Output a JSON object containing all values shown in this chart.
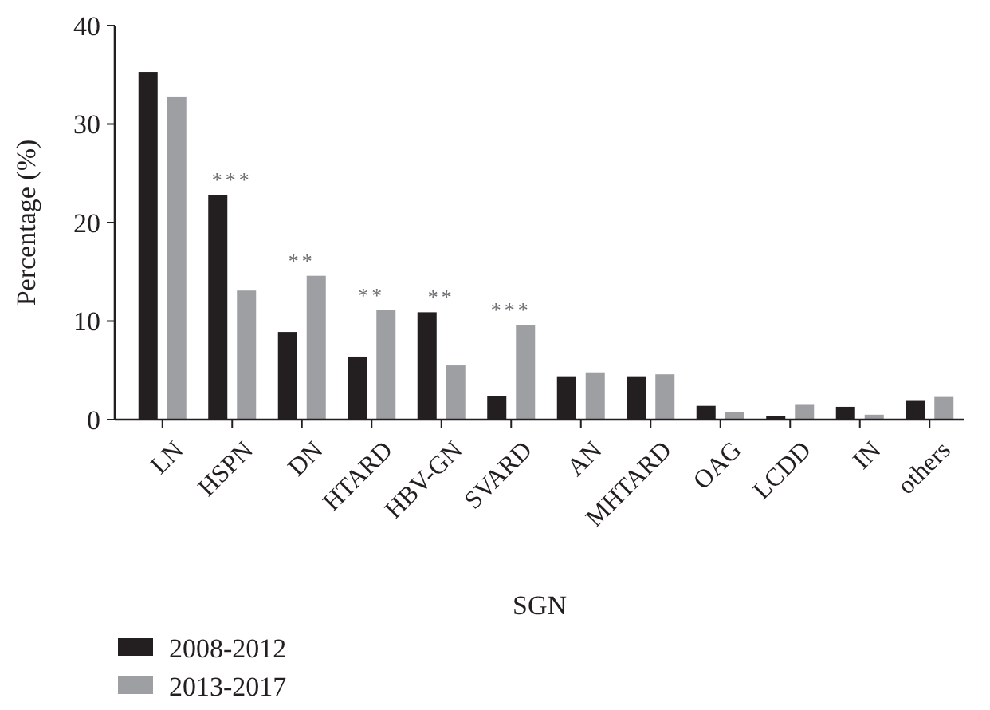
{
  "chart_data": {
    "type": "bar",
    "xlabel": "SGN",
    "ylabel": "Percentage (%)",
    "categories": [
      "LN",
      "HSPN",
      "DN",
      "HTARD",
      "HBV-GN",
      "SVARD",
      "AN",
      "MHTARD",
      "OAG",
      "LCDD",
      "IN",
      "others"
    ],
    "series": [
      {
        "name": "2008-2012",
        "color": "#231f20",
        "values": [
          35.3,
          22.8,
          8.9,
          6.4,
          10.9,
          2.4,
          4.4,
          4.4,
          1.4,
          0.4,
          1.3,
          1.9
        ]
      },
      {
        "name": "2013-2017",
        "color": "#9d9fa2",
        "values": [
          32.8,
          13.1,
          14.6,
          11.1,
          5.5,
          9.6,
          4.8,
          4.6,
          0.8,
          1.5,
          0.5,
          2.3
        ]
      }
    ],
    "ylim": [
      0,
      40
    ],
    "yticks": [
      0,
      10,
      20,
      30,
      40
    ],
    "grid": false,
    "legend": "bottom left",
    "annotations": [
      {
        "text": "***",
        "x": "HSPN",
        "y": 22.8
      },
      {
        "text": "**",
        "x": "DN",
        "y": 14.6
      },
      {
        "text": "**",
        "x": "HTARD",
        "y": 11.1
      },
      {
        "text": "**",
        "x": "HBV-GN",
        "y": 10.9
      },
      {
        "text": "***",
        "x": "SVARD",
        "y": 9.6
      }
    ]
  }
}
